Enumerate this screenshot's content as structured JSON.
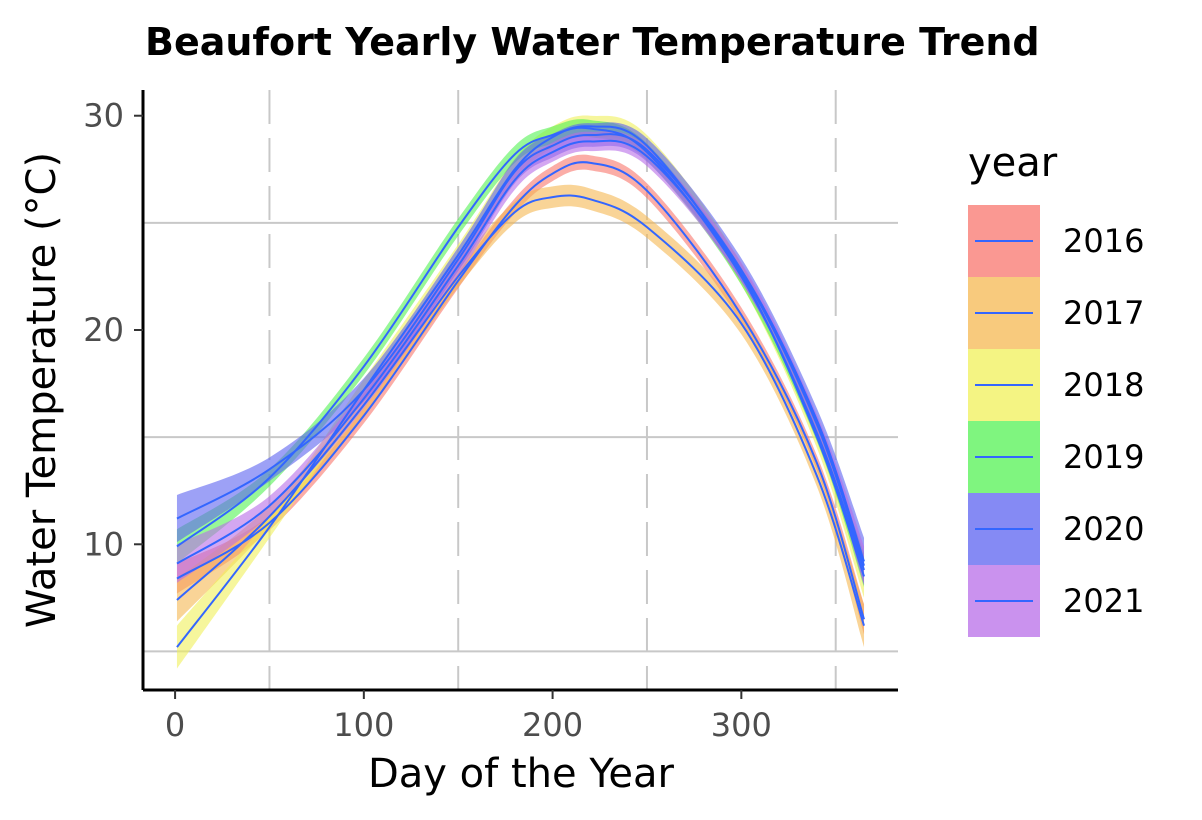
{
  "chart_data": {
    "type": "line",
    "title": "Beaufort Yearly Water Temperature Trend",
    "xlabel": "Day of the Year",
    "ylabel": "Water Temperature (°C)",
    "xlim": [
      -17,
      383
    ],
    "ylim": [
      3.2,
      31.2
    ],
    "x_ticks": [
      0,
      100,
      200,
      300
    ],
    "y_ticks": [
      10,
      20,
      30
    ],
    "x_minor_grid": [
      50,
      150,
      250,
      350
    ],
    "y_minor_grid": [
      5,
      15,
      25
    ],
    "grid": true,
    "legend": {
      "title": "year",
      "position": "right"
    },
    "line_color": "#3366FF",
    "x": [
      1,
      50,
      100,
      150,
      180,
      200,
      220,
      250,
      300,
      340,
      365
    ],
    "series": [
      {
        "name": "2016",
        "fill": "#F8766D",
        "values": [
          8.4,
          11.0,
          16.0,
          22.3,
          25.8,
          27.3,
          27.8,
          26.5,
          20.7,
          13.8,
          6.5
        ],
        "ci": 0.35
      },
      {
        "name": "2017",
        "fill": "#F5B851",
        "values": [
          7.4,
          11.3,
          16.5,
          22.5,
          25.5,
          26.2,
          26.1,
          24.8,
          20.3,
          13.2,
          6.2
        ],
        "ci": 0.5
      },
      {
        "name": "2018",
        "fill": "#F0F05A",
        "values": [
          5.2,
          10.8,
          17.2,
          23.5,
          27.5,
          29.0,
          29.5,
          28.6,
          22.6,
          15.0,
          8.5
        ],
        "ci": 0.5
      },
      {
        "name": "2019",
        "fill": "#54F254",
        "values": [
          9.9,
          13.1,
          18.3,
          24.8,
          28.2,
          29.1,
          29.4,
          28.3,
          22.5,
          15.2,
          8.8
        ],
        "ci": 0.4
      },
      {
        "name": "2020",
        "fill": "#5C63F0",
        "values": [
          11.2,
          13.5,
          17.2,
          23.3,
          27.4,
          28.6,
          29.1,
          28.4,
          22.8,
          15.8,
          9.2
        ],
        "ci": 0.55
      },
      {
        "name": "2021",
        "fill": "#B86DE8",
        "values": [
          9.1,
          11.8,
          16.8,
          23.0,
          27.0,
          28.3,
          28.8,
          28.1,
          22.7,
          15.6,
          9.0
        ],
        "ci": 0.45
      }
    ]
  }
}
